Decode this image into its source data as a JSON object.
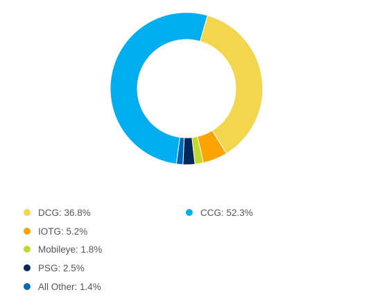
{
  "chart_data": {
    "type": "pie",
    "donut": true,
    "legend_position": "bottom",
    "series": [
      {
        "name": "DCG",
        "value": 36.8,
        "label": "DCG: 36.8%",
        "color": "#F3D54E"
      },
      {
        "name": "IOTG",
        "value": 5.2,
        "label": "IOTG: 5.2%",
        "color": "#FFA300"
      },
      {
        "name": "Mobileye",
        "value": 1.8,
        "label": "Mobileye: 1.8%",
        "color": "#C1D82F"
      },
      {
        "name": "PSG",
        "value": 2.5,
        "label": "PSG: 2.5%",
        "color": "#00285A"
      },
      {
        "name": "All Other",
        "value": 1.4,
        "label": "All Other: 1.4%",
        "color": "#0068B5"
      },
      {
        "name": "CCG",
        "value": 52.3,
        "label": "CCG: 52.3%",
        "color": "#00AEEF"
      }
    ]
  }
}
